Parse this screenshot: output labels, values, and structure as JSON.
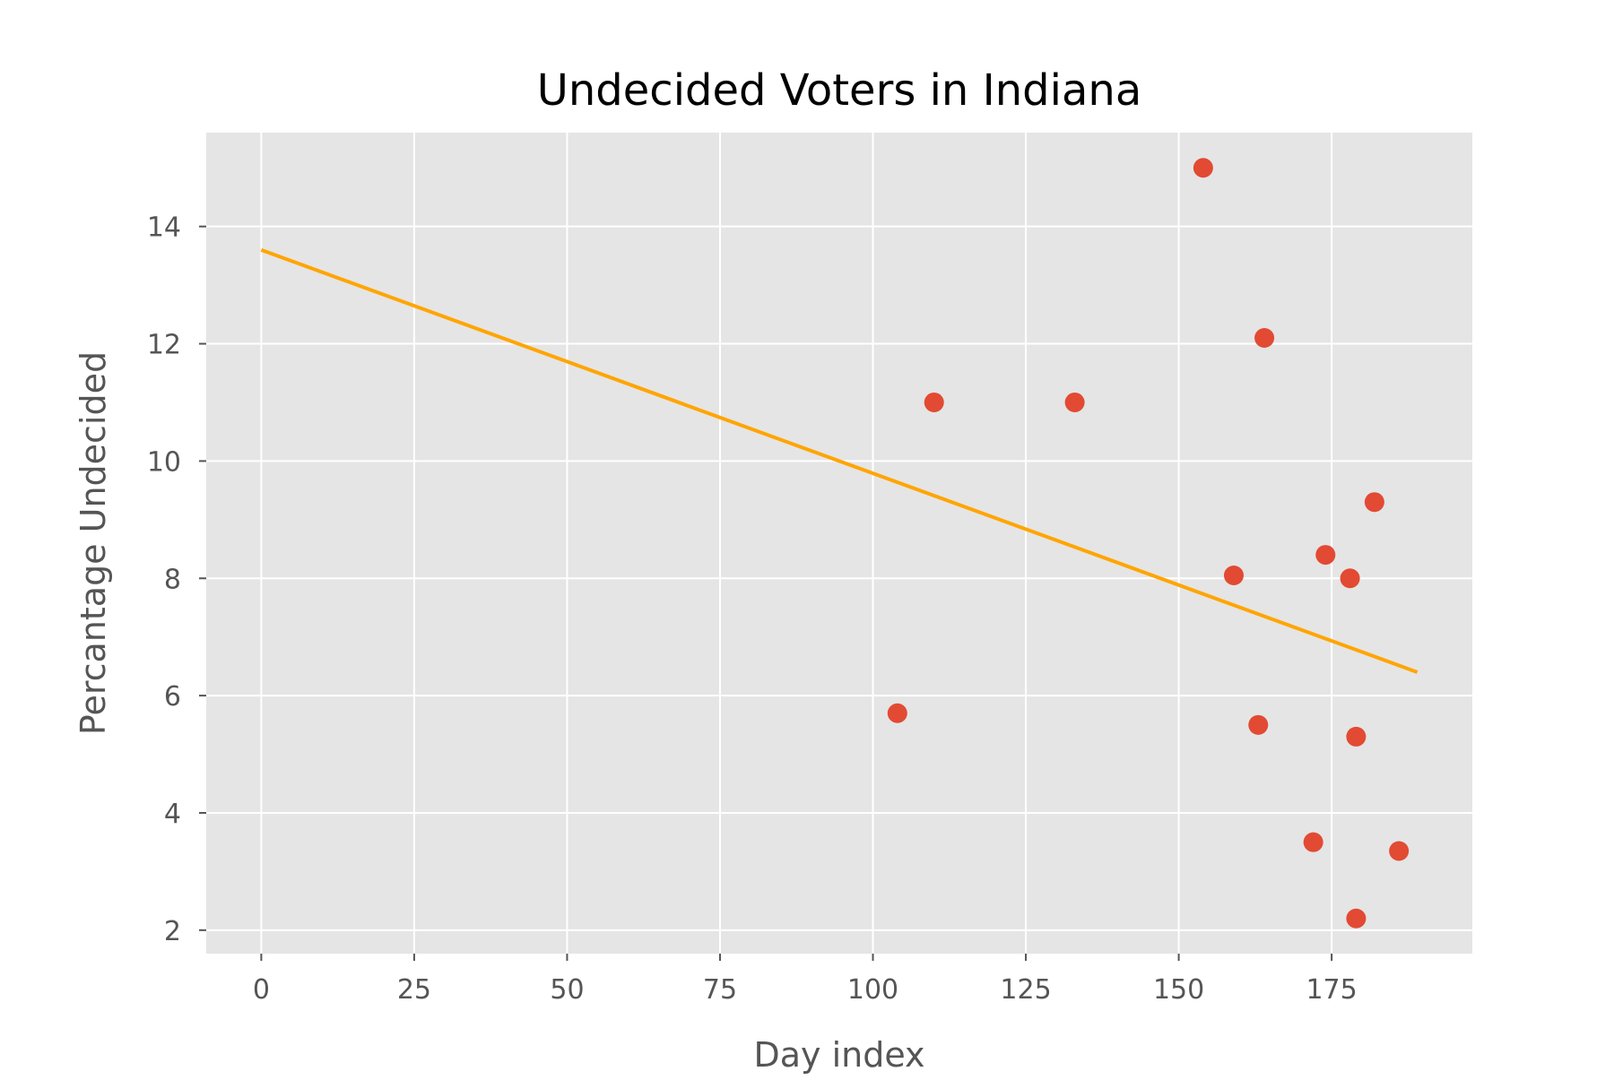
{
  "chart_data": {
    "type": "scatter",
    "title": "Undecided Voters in Indiana",
    "xlabel": "Day index",
    "ylabel": "Percantage Undecided",
    "xlim": [
      -9,
      198
    ],
    "ylim": [
      1.6,
      15.6
    ],
    "xticks": [
      0,
      25,
      50,
      75,
      100,
      125,
      150,
      175
    ],
    "yticks": [
      2,
      4,
      6,
      8,
      10,
      12,
      14
    ],
    "grid": true,
    "legend": "none",
    "colors": {
      "background": "#e5e5e5",
      "grid": "#ffffff",
      "points": "#e24a33",
      "trend": "#ffa500",
      "tick": "#555555"
    },
    "series": [
      {
        "type": "scatter",
        "points": [
          {
            "x": 104,
            "y": 5.7
          },
          {
            "x": 110,
            "y": 11.0
          },
          {
            "x": 133,
            "y": 11.0
          },
          {
            "x": 154,
            "y": 15.0
          },
          {
            "x": 159,
            "y": 8.05
          },
          {
            "x": 163,
            "y": 5.5
          },
          {
            "x": 164,
            "y": 12.1
          },
          {
            "x": 172,
            "y": 3.5
          },
          {
            "x": 174,
            "y": 8.4
          },
          {
            "x": 178,
            "y": 8.0
          },
          {
            "x": 179,
            "y": 5.3
          },
          {
            "x": 179,
            "y": 2.2
          },
          {
            "x": 182,
            "y": 9.3
          },
          {
            "x": 186,
            "y": 3.35
          }
        ]
      },
      {
        "type": "line",
        "points": [
          {
            "x": 0,
            "y": 13.6
          },
          {
            "x": 189,
            "y": 6.4
          }
        ]
      }
    ]
  }
}
